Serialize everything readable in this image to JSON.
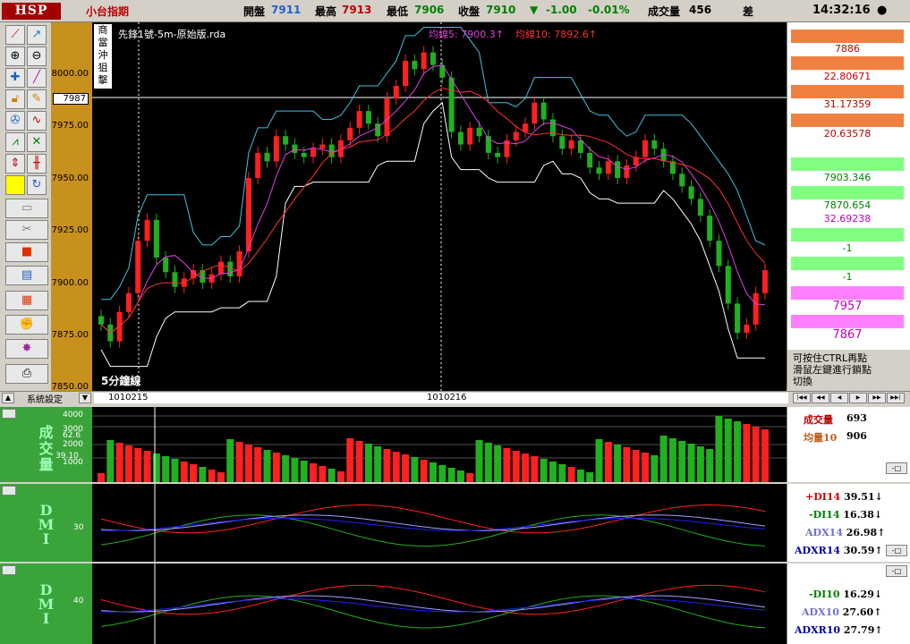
{
  "topbar": {
    "logo": "HSP",
    "symbol": "小台指期",
    "open_label": "開盤",
    "open_value": "7911",
    "high_label": "最高",
    "high_value": "7913",
    "low_label": "最低",
    "low_value": "7906",
    "close_label": "收盤",
    "close_value": "7910",
    "change_arrow": "▼",
    "change_value": "-1.00",
    "change_pct": "-0.01%",
    "volume_label": "成交量",
    "volume_value": "456",
    "diff_label": "差",
    "time": "14:32:16",
    "status_dot": "●"
  },
  "chart": {
    "title": "先鋒1號-5m-原始版.rda",
    "ma5_label": "均線5: 7900.3↑",
    "ma10_label": "均線10: 7892.6↑",
    "side_tag": [
      "商",
      "當",
      "沖",
      "狙",
      "擊"
    ],
    "period_label": "5分鐘線",
    "crosshair_price": "7987",
    "price_ticks": [
      "8000.00",
      "7975.00",
      "7950.00",
      "7925.00",
      "7900.00",
      "7875.00",
      "7850.00"
    ],
    "date_ticks": [
      "1010215",
      "1010216"
    ]
  },
  "right_panel": {
    "values": [
      "7886",
      "22.80671",
      "31.17359",
      "20.63578",
      "7903.346",
      "7870.654",
      "32.69238",
      "-1",
      "-1",
      "7957",
      "7867"
    ],
    "hint": [
      "可按住CTRL再點",
      "滑鼠左鍵進行鎖點",
      "切換"
    ]
  },
  "scrollbar": {
    "left_label": "系統設定",
    "nav": [
      "|◀◀",
      "◀◀",
      "◀",
      "▶",
      "▶▶",
      "▶▶|"
    ]
  },
  "volume_panel": {
    "label": "成交量",
    "ticks": [
      "4000",
      "3000",
      "2000",
      "1000"
    ],
    "small_ticks": [
      "62.6",
      "39.10"
    ],
    "vol_label": "成交量",
    "vol_value": "693",
    "avg_label": "均量10",
    "avg_value": "906"
  },
  "dmi1": {
    "label": "DMI",
    "tick": "30",
    "rows": [
      {
        "name": "+DI14",
        "value": "39.51",
        "arrow": "↓",
        "color": "#d00000"
      },
      {
        "name": "-DI14",
        "value": "16.38",
        "arrow": "↓",
        "color": "#008000"
      },
      {
        "name": "ADX14",
        "value": "26.98",
        "arrow": "↑",
        "color": "#7070d0"
      },
      {
        "name": "ADXR14",
        "value": "30.59",
        "arrow": "↑",
        "color": "#0000a0"
      }
    ]
  },
  "dmi2": {
    "label": "DMI",
    "tick": "40",
    "rows": [
      {
        "name": "-DI10",
        "value": "16.29",
        "arrow": "↓",
        "color": "#008000"
      },
      {
        "name": "ADX10",
        "value": "27.60",
        "arrow": "↑",
        "color": "#7070d0"
      },
      {
        "name": "ADXR10",
        "value": "27.79",
        "arrow": "↑",
        "color": "#0000a0"
      }
    ]
  },
  "colors": {
    "up": "#ff2020",
    "down": "#20b020",
    "bg": "#000000",
    "price_axis": "#c8901c"
  },
  "chart_data": {
    "type": "candlestick",
    "close_series": [
      7880,
      7872,
      7886,
      7895,
      7920,
      7930,
      7912,
      7905,
      7898,
      7902,
      7906,
      7900,
      7904,
      7910,
      7903,
      7915,
      7950,
      7962,
      7958,
      7970,
      7966,
      7962,
      7960,
      7964,
      7966,
      7960,
      7968,
      7974,
      7982,
      7976,
      7970,
      7988,
      7994,
      8006,
      8002,
      8010,
      8004,
      7998,
      7972,
      7966,
      7974,
      7970,
      7962,
      7960,
      7968,
      7972,
      7976,
      7986,
      7978,
      7970,
      7964,
      7968,
      7962,
      7955,
      7952,
      7958,
      7950,
      7956,
      7960,
      7968,
      7964,
      7958,
      7952,
      7946,
      7940,
      7932,
      7920,
      7908,
      7890,
      7876,
      7880,
      7895,
      7906
    ]
  }
}
